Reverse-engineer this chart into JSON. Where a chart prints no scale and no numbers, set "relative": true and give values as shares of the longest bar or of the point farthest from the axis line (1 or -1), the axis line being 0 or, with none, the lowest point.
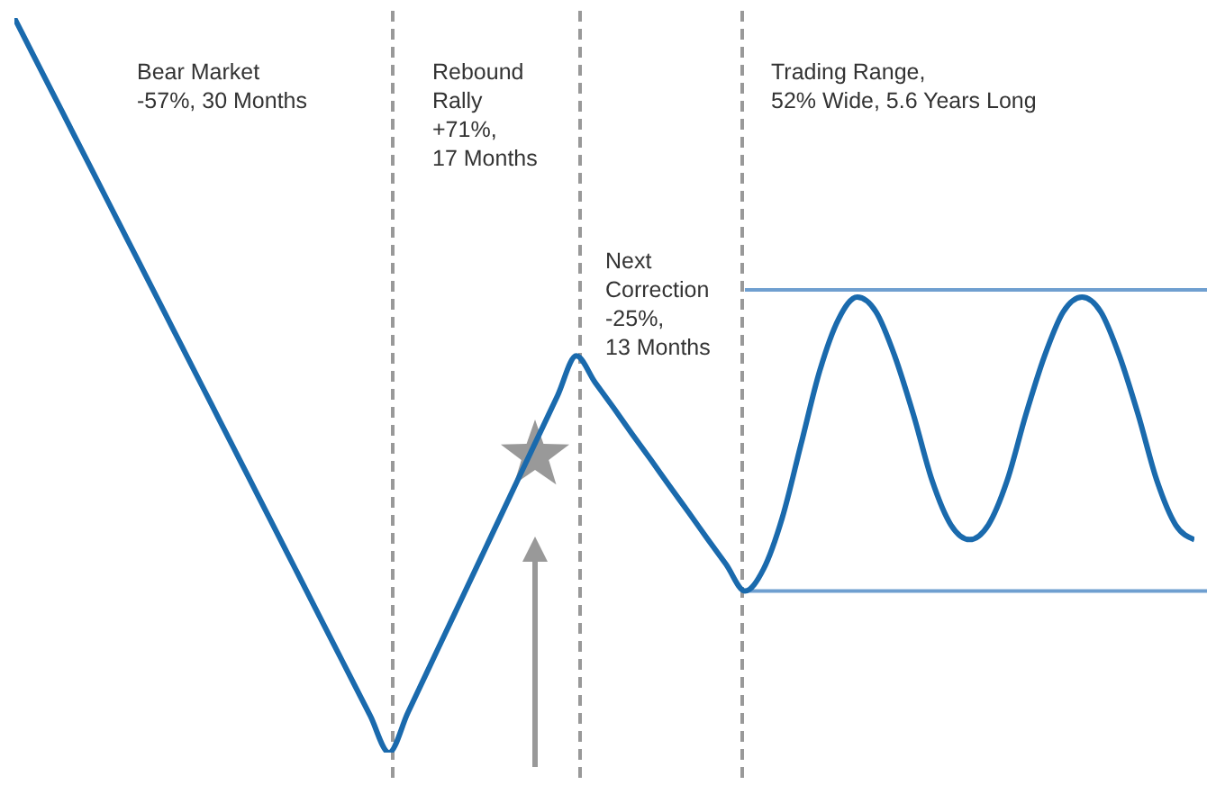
{
  "chart_data": {
    "type": "line",
    "relative": true,
    "categories": [
      null,
      null,
      null,
      null,
      null,
      null,
      null,
      null,
      null,
      null,
      null,
      null,
      null,
      null,
      null,
      null,
      null,
      null,
      null,
      null,
      null,
      null,
      null,
      null,
      null,
      null,
      null,
      null,
      null,
      null,
      null,
      null,
      null,
      null,
      null,
      null,
      null,
      null,
      null,
      null,
      null,
      null,
      null,
      null,
      null,
      null,
      null,
      null,
      null,
      null,
      null,
      null,
      null,
      null,
      null,
      null,
      null,
      null,
      null,
      null,
      null,
      null,
      null,
      null
    ],
    "series": [
      {
        "color": "#1a6aad",
        "values": [
          1,
          0.95,
          0.9,
          0.85,
          0.8,
          0.75,
          0.7,
          0.65,
          0.6,
          0.55,
          0.5,
          0.45,
          0.4,
          0.35,
          0.3,
          0.25,
          0.2,
          0.15,
          0.1,
          0.05,
          0,
          0.054,
          0.108,
          0.162,
          0.216,
          0.27,
          0.324,
          0.378,
          0.432,
          0.486,
          0.54,
          0.504,
          0.469,
          0.433,
          0.398,
          0.362,
          0.327,
          0.291,
          0.256,
          0.22,
          0.25,
          0.32,
          0.42,
          0.52,
          0.59,
          0.62,
          0.6,
          0.54,
          0.46,
          0.37,
          0.31,
          0.29,
          0.31,
          0.37,
          0.46,
          0.54,
          0.6,
          0.62,
          0.6,
          0.54,
          0.46,
          0.37,
          0.31,
          0.29
        ]
      }
    ],
    "ref_lines": [
      {
        "axis": "y",
        "value": 0.63,
        "color": "#6f9fd0",
        "line_style": "solid"
      },
      {
        "axis": "y",
        "value": 0.22,
        "color": "#6f9fd0",
        "line_style": "solid"
      }
    ],
    "annotations": [
      "Bear Market\n-57%, 30 Months",
      "Rebound\nRally\n+71%,\n17 Months",
      "Next\nCorrection\n-25%,\n13 Months",
      "Trading Range,\n52% Wide, 5.6 Years Long"
    ],
    "grid": "x",
    "marker": "none",
    "line_style": "solid"
  }
}
